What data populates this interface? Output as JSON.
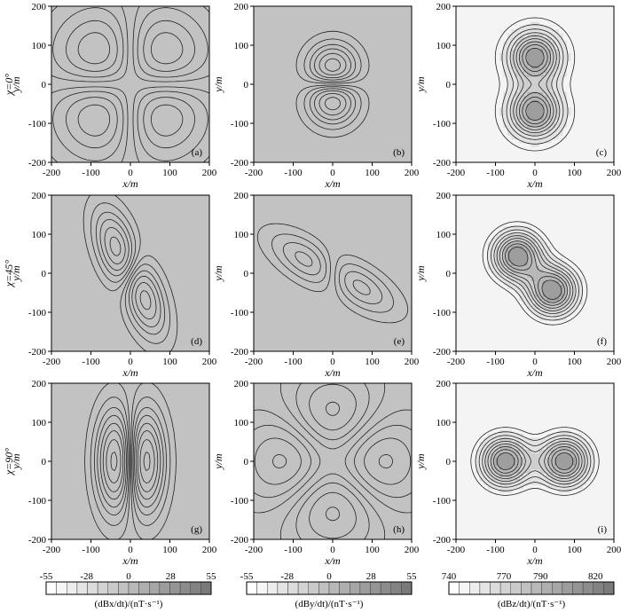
{
  "chart_data": {
    "type": "contour",
    "rows": [
      {
        "label_prefix": "χ=",
        "label_value": "0°"
      },
      {
        "label_prefix": "χ=",
        "label_value": "45°"
      },
      {
        "label_prefix": "χ=",
        "label_value": "90°"
      }
    ],
    "panels": [
      {
        "id": "(a)",
        "field": "Bx",
        "row": 0,
        "col": 0
      },
      {
        "id": "(b)",
        "field": "By",
        "row": 0,
        "col": 1
      },
      {
        "id": "(c)",
        "field": "Bz",
        "row": 0,
        "col": 2
      },
      {
        "id": "(d)",
        "field": "Bx",
        "row": 1,
        "col": 0
      },
      {
        "id": "(e)",
        "field": "By",
        "row": 1,
        "col": 1
      },
      {
        "id": "(f)",
        "field": "Bz",
        "row": 1,
        "col": 2
      },
      {
        "id": "(g)",
        "field": "Bx",
        "row": 2,
        "col": 0
      },
      {
        "id": "(h)",
        "field": "By",
        "row": 2,
        "col": 1
      },
      {
        "id": "(i)",
        "field": "Bz",
        "row": 2,
        "col": 2
      }
    ],
    "xlabel": "x/m",
    "ylabel": "y/m",
    "xlim": [
      -200,
      200
    ],
    "ylim": [
      -200,
      200
    ],
    "xticks": [
      -200,
      -100,
      0,
      100,
      200
    ],
    "yticks": [
      200,
      100,
      0,
      -100,
      -200
    ],
    "colorbars": [
      {
        "label": "(dBx/dt)/(nT·s⁻¹)",
        "ticks": [
          "-55",
          "-28",
          "0",
          "28",
          "55"
        ],
        "range": [
          -55,
          55
        ],
        "light": "#ffffff",
        "dark": "#7a7a7a"
      },
      {
        "label": "(dBy/dt)/(nT·s⁻¹)",
        "ticks": [
          "-55",
          "-28",
          "0",
          "28",
          "55"
        ],
        "range": [
          -55,
          55
        ],
        "light": "#ffffff",
        "dark": "#7a7a7a"
      },
      {
        "label": "(dBz/dt)/(nT·s⁻¹)",
        "ticks": [
          "740",
          "770",
          "790",
          "820"
        ],
        "range": [
          740,
          830
        ],
        "light": "#ffffff",
        "dark": "#7a7a7a"
      }
    ]
  }
}
